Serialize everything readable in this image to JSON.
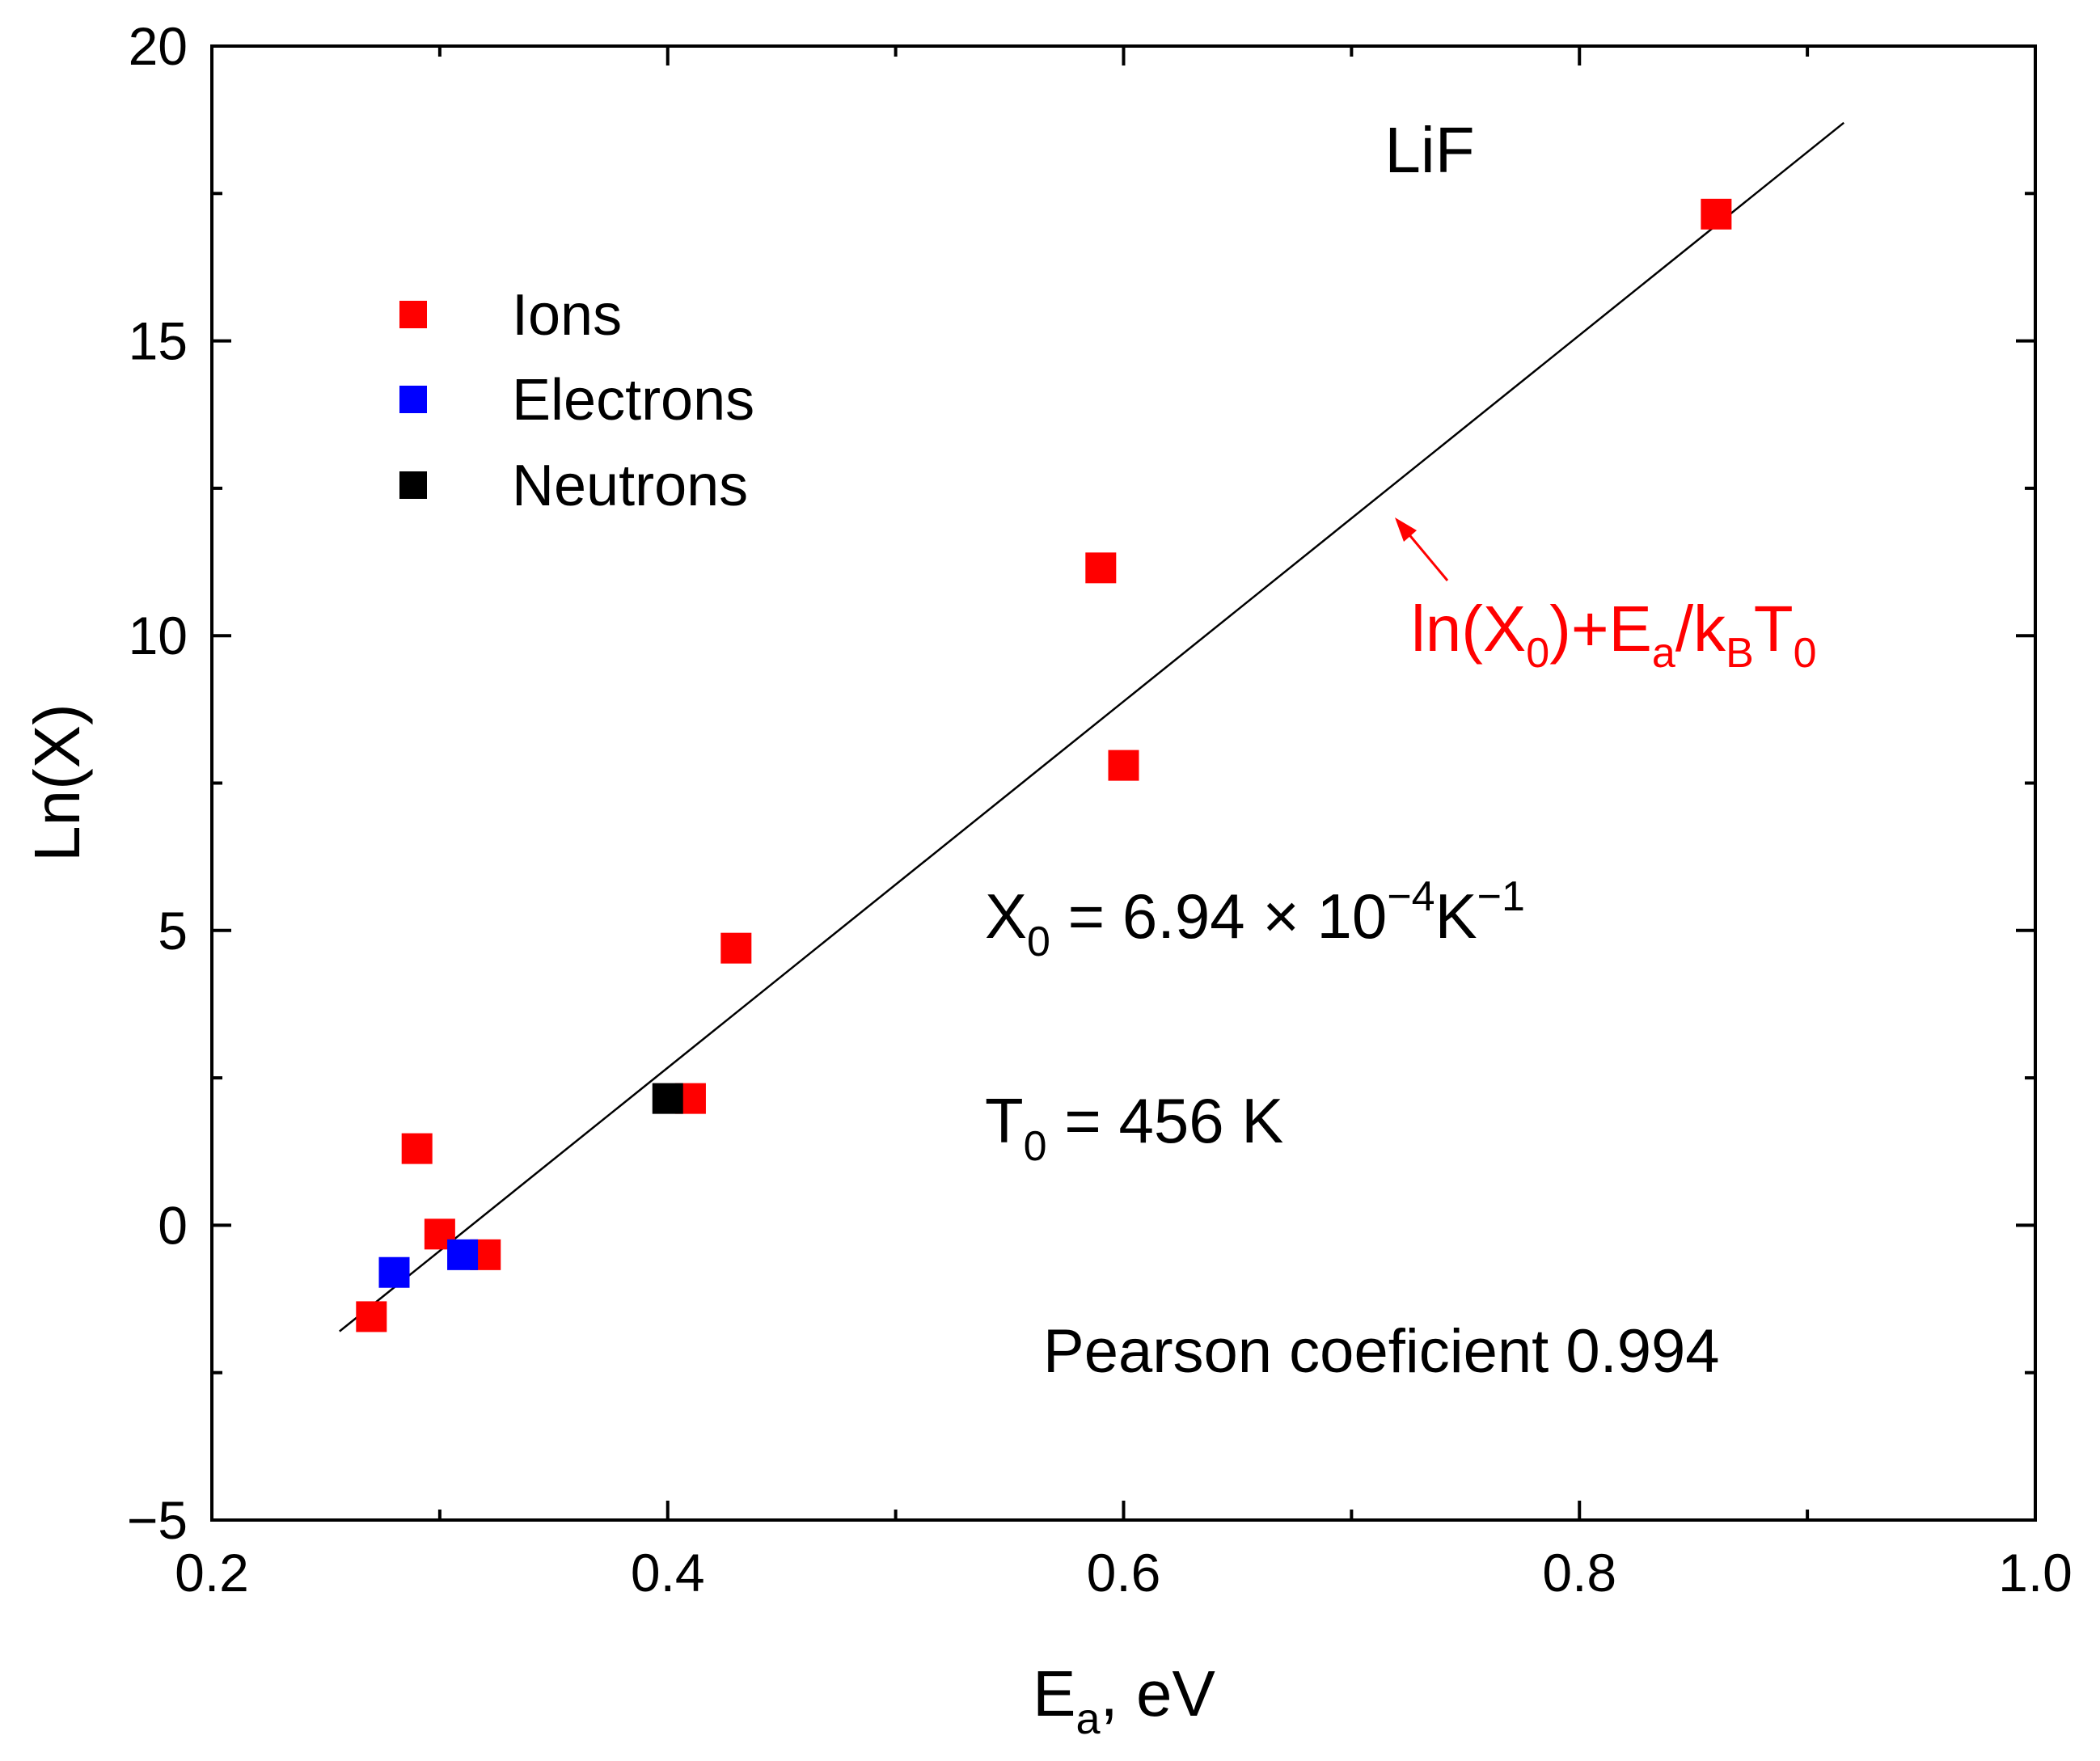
{
  "chart_data": {
    "type": "scatter",
    "title": "LiF",
    "xlabel": "E",
    "xlabel_sub": "a",
    "xlabel_unit": ", eV",
    "ylabel": "Ln(X)",
    "xlim": [
      0.2,
      1.0
    ],
    "ylim": [
      -5,
      20
    ],
    "x_ticks": [
      0.2,
      0.4,
      0.6,
      0.8,
      1.0
    ],
    "x_tick_labels": [
      "0.2",
      "0.4",
      "0.6",
      "0.8",
      "1.0"
    ],
    "x_minor_ticks": [
      0.3,
      0.5,
      0.7,
      0.9
    ],
    "y_ticks": [
      -5,
      0,
      5,
      10,
      15,
      20
    ],
    "y_tick_labels": [
      "−5",
      "0",
      "5",
      "10",
      "15",
      "20"
    ],
    "y_minor_ticks": [
      -2.5,
      2.5,
      7.5,
      12.5,
      17.5
    ],
    "grid": false,
    "legend_position": "top-left",
    "series": [
      {
        "name": "Ions",
        "color": "#ff0000",
        "marker": "square",
        "points": [
          {
            "x": 0.27,
            "y": -1.55
          },
          {
            "x": 0.29,
            "y": 1.3
          },
          {
            "x": 0.3,
            "y": -0.15
          },
          {
            "x": 0.32,
            "y": -0.5
          },
          {
            "x": 0.41,
            "y": 2.15
          },
          {
            "x": 0.43,
            "y": 4.7
          },
          {
            "x": 0.59,
            "y": 11.15
          },
          {
            "x": 0.6,
            "y": 7.8
          },
          {
            "x": 0.86,
            "y": 17.15
          }
        ]
      },
      {
        "name": "Electrons",
        "color": "#0000ff",
        "marker": "square",
        "points": [
          {
            "x": 0.28,
            "y": -0.8
          },
          {
            "x": 0.31,
            "y": -0.5
          }
        ]
      },
      {
        "name": "Neutrons",
        "color": "#000000",
        "marker": "square",
        "points": [
          {
            "x": 0.4,
            "y": 2.15
          }
        ]
      }
    ],
    "fit_line": {
      "color": "#000000",
      "from": {
        "x": 0.256,
        "y": -1.8
      },
      "to": {
        "x": 0.916,
        "y": 18.7
      }
    },
    "annotations": {
      "fit_label": {
        "color": "#ff0000",
        "parts": [
          "ln(X",
          "0",
          ")+E",
          "a",
          "/k",
          "B",
          "T",
          "0"
        ]
      },
      "x0_label": {
        "parts": [
          "X",
          "0",
          " = 6.94 × 10",
          "−4",
          "K",
          "−1"
        ]
      },
      "t0_label": {
        "parts": [
          "T",
          "0",
          " = 456 K"
        ]
      },
      "pearson_label": "Pearson coeficient 0.994"
    }
  }
}
